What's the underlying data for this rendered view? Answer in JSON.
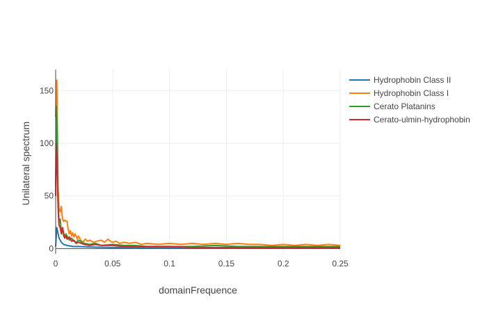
{
  "chart_data": {
    "type": "line",
    "title": "",
    "xlabel": "domainFrequence",
    "ylabel": "Unilateral spectrum",
    "xlim": [
      0,
      0.25
    ],
    "ylim": [
      -5,
      170
    ],
    "xticks": [
      0,
      0.05,
      0.1,
      0.15,
      0.2,
      0.25
    ],
    "xtick_labels": [
      "0",
      "0.05",
      "0.1",
      "0.15",
      "0.2",
      "0.25"
    ],
    "yticks": [
      0,
      50,
      100,
      150
    ],
    "ytick_labels": [
      "0",
      "50",
      "100",
      "150"
    ],
    "grid": true,
    "legend_position": "top-right",
    "series": [
      {
        "name": "Hydrophobin Class II",
        "color": "#1f77b4",
        "x": [
          0,
          0.001,
          0.002,
          0.003,
          0.004,
          0.005,
          0.007,
          0.01,
          0.015,
          0.02,
          0.03,
          0.05,
          0.1,
          0.15,
          0.2,
          0.25
        ],
        "y": [
          2,
          20,
          15,
          10,
          8,
          6,
          4,
          3,
          2,
          2,
          1.5,
          1,
          1,
          1,
          1,
          1
        ]
      },
      {
        "name": "Hydrophobin Class I",
        "color": "#ff7f0e",
        "x": [
          0,
          0.0005,
          0.001,
          0.0015,
          0.002,
          0.003,
          0.004,
          0.005,
          0.006,
          0.007,
          0.008,
          0.009,
          0.01,
          0.011,
          0.012,
          0.013,
          0.014,
          0.015,
          0.016,
          0.017,
          0.018,
          0.019,
          0.02,
          0.022,
          0.024,
          0.026,
          0.028,
          0.03,
          0.033,
          0.036,
          0.04,
          0.043,
          0.046,
          0.048,
          0.05,
          0.053,
          0.056,
          0.06,
          0.065,
          0.07,
          0.075,
          0.08,
          0.09,
          0.1,
          0.11,
          0.12,
          0.13,
          0.14,
          0.15,
          0.16,
          0.17,
          0.18,
          0.19,
          0.2,
          0.21,
          0.22,
          0.23,
          0.24,
          0.25
        ],
        "y": [
          125,
          150,
          160,
          120,
          60,
          38,
          35,
          40,
          28,
          26,
          27,
          26,
          26,
          18,
          14,
          17,
          12,
          15,
          11,
          14,
          12,
          9,
          12,
          8,
          6,
          9,
          7,
          8,
          6,
          7,
          8,
          6,
          9,
          7,
          6,
          7,
          5,
          6,
          5,
          6,
          4,
          5,
          4,
          5,
          4,
          5,
          4,
          5,
          4,
          5,
          4,
          4,
          3,
          4,
          3,
          4,
          3,
          4,
          3
        ]
      },
      {
        "name": "Cerato Platanins",
        "color": "#2ca02c",
        "x": [
          0,
          0.0005,
          0.001,
          0.0015,
          0.002,
          0.0025,
          0.003,
          0.004,
          0.005,
          0.006,
          0.007,
          0.008,
          0.009,
          0.01,
          0.012,
          0.014,
          0.016,
          0.018,
          0.02,
          0.025,
          0.03,
          0.035,
          0.04,
          0.05,
          0.06,
          0.07,
          0.08,
          0.1,
          0.12,
          0.14,
          0.16,
          0.18,
          0.2,
          0.22,
          0.24,
          0.25
        ],
        "y": [
          60,
          135,
          125,
          95,
          55,
          35,
          25,
          28,
          15,
          18,
          12,
          10,
          14,
          12,
          8,
          10,
          7,
          6,
          8,
          5,
          4,
          5,
          3,
          4,
          3,
          3,
          2,
          2,
          2,
          3,
          2,
          2,
          2,
          2,
          2,
          2
        ]
      },
      {
        "name": "Cerato-ulmin-hydrophobin",
        "color": "#d62728",
        "x": [
          0,
          0.0005,
          0.001,
          0.0015,
          0.002,
          0.0025,
          0.003,
          0.004,
          0.005,
          0.006,
          0.007,
          0.008,
          0.009,
          0.01,
          0.012,
          0.014,
          0.016,
          0.018,
          0.02,
          0.025,
          0.03,
          0.035,
          0.04,
          0.05,
          0.06,
          0.07,
          0.08,
          0.1,
          0.12,
          0.14,
          0.16,
          0.18,
          0.2,
          0.22,
          0.24,
          0.25
        ],
        "y": [
          50,
          100,
          90,
          70,
          45,
          30,
          22,
          20,
          14,
          20,
          15,
          10,
          12,
          9,
          11,
          7,
          8,
          5,
          6,
          4,
          3,
          4,
          3,
          3,
          2,
          2,
          2,
          2,
          1,
          1,
          1,
          1,
          1,
          1,
          1,
          1
        ]
      }
    ]
  }
}
